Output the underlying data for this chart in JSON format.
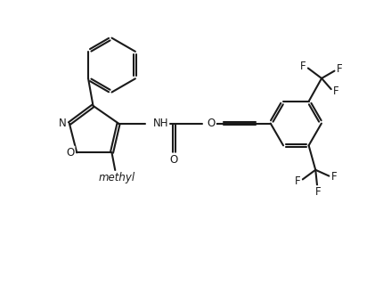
{
  "background_color": "#ffffff",
  "line_color": "#1a1a1a",
  "line_width": 1.5,
  "font_size": 8.5,
  "figsize": [
    4.3,
    3.29
  ],
  "dpi": 100,
  "xlim": [
    -0.8,
    9.2
  ],
  "ylim": [
    -1.8,
    6.8
  ]
}
